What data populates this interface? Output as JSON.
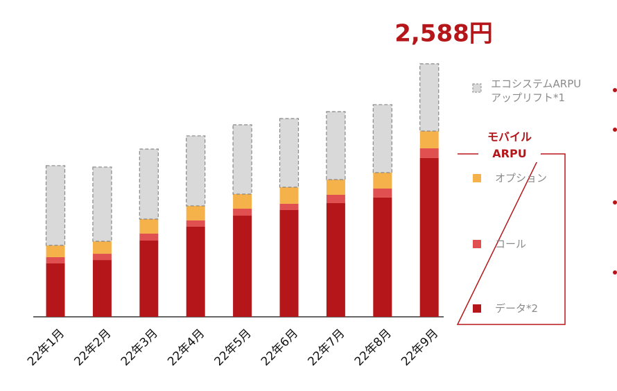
{
  "chart_data": {
    "type": "stacked_bar",
    "annotation": "2,588円",
    "categories": [
      "22年1月",
      "22年2月",
      "22年3月",
      "22年4月",
      "22年5月",
      "22年6月",
      "22年7月",
      "22年8月",
      "22年9月"
    ],
    "series": [
      {
        "name": "データ*2",
        "color": "#b5161a",
        "values": [
          546,
          581,
          780,
          922,
          1035,
          1092,
          1163,
          1220,
          1624
        ]
      },
      {
        "name": "コール",
        "color": "#e05050",
        "values": [
          64,
          64,
          71,
          64,
          71,
          64,
          85,
          92,
          99
        ]
      },
      {
        "name": "オプション",
        "color": "#f5b14a",
        "values": [
          121,
          128,
          149,
          149,
          149,
          170,
          156,
          163,
          177
        ]
      },
      {
        "name": "エコシステムARPU\nアップリフト*1",
        "color": "#d9d9d9",
        "values": [
          815,
          759,
          716,
          716,
          709,
          702,
          695,
          695,
          688
        ]
      }
    ],
    "legend_group_title": "モバイル\nARPU"
  }
}
